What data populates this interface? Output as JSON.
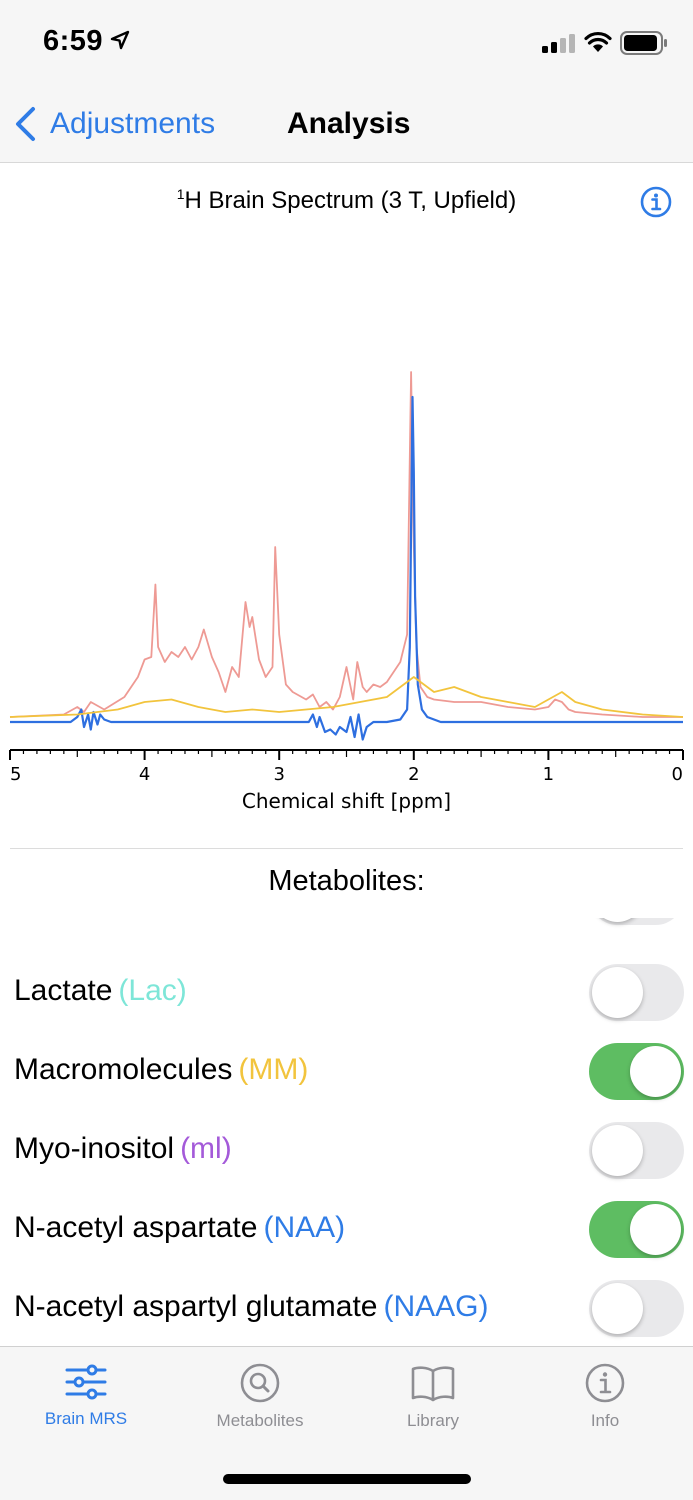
{
  "status_bar": {
    "time": "6:59"
  },
  "nav": {
    "back_label": "Adjustments",
    "title": "Analysis"
  },
  "chart_title": {
    "superscript": "1",
    "text": "H Brain Spectrum (3 T, Upfield)"
  },
  "chart_data": {
    "type": "line",
    "xlabel": "Chemical shift [ppm]",
    "xlim": [
      5,
      0
    ],
    "x_reversed": true,
    "x_ticks": [
      "5",
      "4",
      "3",
      "2",
      "1",
      "0"
    ],
    "series": [
      {
        "color": "#ee9a94",
        "x": [
          5.0,
          4.6,
          4.5,
          4.45,
          4.4,
          4.3,
          4.15,
          4.05,
          4.0,
          3.95,
          3.92,
          3.9,
          3.85,
          3.8,
          3.75,
          3.7,
          3.65,
          3.6,
          3.56,
          3.5,
          3.45,
          3.4,
          3.35,
          3.3,
          3.25,
          3.22,
          3.2,
          3.15,
          3.1,
          3.05,
          3.03,
          3.0,
          2.95,
          2.9,
          2.8,
          2.75,
          2.7,
          2.65,
          2.6,
          2.55,
          2.5,
          2.45,
          2.42,
          2.38,
          2.35,
          2.3,
          2.25,
          2.2,
          2.1,
          2.05,
          2.02,
          2.0,
          1.98,
          1.95,
          1.9,
          1.85,
          1.7,
          1.5,
          1.3,
          1.1,
          1.0,
          0.95,
          0.9,
          0.85,
          0.8,
          0.6,
          0.3,
          0.0
        ],
        "y": [
          0.02,
          0.03,
          0.06,
          0.04,
          0.08,
          0.05,
          0.1,
          0.18,
          0.25,
          0.26,
          0.55,
          0.3,
          0.24,
          0.28,
          0.26,
          0.3,
          0.25,
          0.3,
          0.37,
          0.26,
          0.2,
          0.12,
          0.22,
          0.18,
          0.48,
          0.38,
          0.42,
          0.25,
          0.18,
          0.22,
          0.7,
          0.35,
          0.15,
          0.12,
          0.09,
          0.11,
          0.06,
          0.08,
          0.05,
          0.1,
          0.22,
          0.09,
          0.24,
          0.14,
          0.12,
          0.15,
          0.14,
          0.16,
          0.24,
          0.35,
          1.4,
          0.7,
          0.3,
          0.14,
          0.1,
          0.09,
          0.08,
          0.08,
          0.06,
          0.05,
          0.06,
          0.09,
          0.08,
          0.05,
          0.04,
          0.03,
          0.02,
          0.02
        ]
      },
      {
        "color": "#2e6fe0",
        "x": [
          5.0,
          4.55,
          4.5,
          4.47,
          4.45,
          4.42,
          4.4,
          4.38,
          4.35,
          4.33,
          4.3,
          4.25,
          4.1,
          3.5,
          3.0,
          2.78,
          2.75,
          2.72,
          2.7,
          2.66,
          2.62,
          2.58,
          2.55,
          2.5,
          2.47,
          2.44,
          2.41,
          2.38,
          2.35,
          2.3,
          2.2,
          2.1,
          2.05,
          2.03,
          2.01,
          2.0,
          1.99,
          1.97,
          1.94,
          1.9,
          1.8,
          1.5,
          1.0,
          0.5,
          0.0
        ],
        "y": [
          0.0,
          0.0,
          0.02,
          0.05,
          -0.02,
          0.03,
          -0.03,
          0.04,
          -0.01,
          0.03,
          0.01,
          0.0,
          0.0,
          0.0,
          0.0,
          0.0,
          0.03,
          -0.02,
          0.02,
          -0.04,
          -0.03,
          -0.05,
          -0.02,
          -0.04,
          0.02,
          -0.06,
          0.03,
          -0.07,
          -0.02,
          0.0,
          0.0,
          0.01,
          0.05,
          0.3,
          1.3,
          1.0,
          0.5,
          0.15,
          0.05,
          0.02,
          0.0,
          0.0,
          0.0,
          0.0,
          0.0
        ]
      },
      {
        "color": "#f2c43d",
        "x": [
          5.0,
          4.5,
          4.2,
          4.0,
          3.8,
          3.6,
          3.4,
          3.2,
          3.0,
          2.8,
          2.6,
          2.4,
          2.2,
          2.0,
          1.85,
          1.7,
          1.5,
          1.3,
          1.1,
          1.0,
          0.9,
          0.8,
          0.6,
          0.3,
          0.0
        ],
        "y": [
          0.02,
          0.03,
          0.05,
          0.08,
          0.09,
          0.06,
          0.04,
          0.05,
          0.04,
          0.05,
          0.06,
          0.08,
          0.1,
          0.18,
          0.12,
          0.14,
          0.1,
          0.08,
          0.06,
          0.09,
          0.12,
          0.08,
          0.05,
          0.03,
          0.02
        ]
      }
    ]
  },
  "metabolites": {
    "heading": "Metabolites:",
    "items": [
      {
        "name": "Lactate",
        "abbr": "(Lac)",
        "color": "#7ee6d8",
        "enabled": false
      },
      {
        "name": "Macromolecules",
        "abbr": "(MM)",
        "color": "#f2c43d",
        "enabled": true
      },
      {
        "name": "Myo-inositol",
        "abbr": "(ml)",
        "color": "#a45ad9",
        "enabled": false
      },
      {
        "name": "N-acetyl aspartate",
        "abbr": "(NAA)",
        "color": "#2f7ce6",
        "enabled": true
      },
      {
        "name": "N-acetyl aspartyl glutamate",
        "abbr": "(NAAG)",
        "color": "#2f7ce6",
        "enabled": false
      }
    ]
  },
  "tabs": [
    {
      "label": "Brain MRS",
      "icon": "sliders-icon",
      "active": true
    },
    {
      "label": "Metabolites",
      "icon": "magnifier-icon",
      "active": false
    },
    {
      "label": "Library",
      "icon": "book-icon",
      "active": false
    },
    {
      "label": "Info",
      "icon": "info-icon",
      "active": false
    }
  ],
  "colors": {
    "accent": "#2f7ce6",
    "toggle_on": "#5ebd62",
    "toggle_off": "#e9e9eb"
  }
}
